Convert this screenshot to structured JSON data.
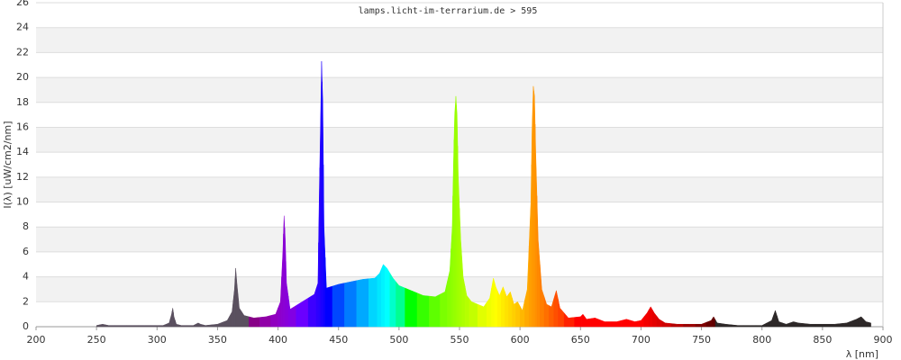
{
  "chart_data": {
    "type": "spectrum",
    "title": "lamps.licht-im-terrarium.de > 595",
    "x_label": "λ [nm]",
    "y_label": "I(λ)  [uW/cm2/nm]",
    "x": [
      250,
      255,
      260,
      270,
      280,
      290,
      300,
      305,
      310,
      312,
      313,
      314,
      316,
      320,
      330,
      334,
      336,
      340,
      350,
      358,
      362,
      364,
      365,
      366,
      368,
      372,
      380,
      390,
      398,
      402,
      404,
      405,
      406,
      407,
      410,
      420,
      430,
      433,
      434,
      435,
      436,
      437,
      438,
      440,
      450,
      460,
      470,
      480,
      484,
      487,
      490,
      495,
      500,
      510,
      520,
      530,
      538,
      542,
      544,
      545,
      546,
      547,
      548,
      549,
      551,
      553,
      556,
      560,
      570,
      575,
      578,
      580,
      583,
      586,
      589,
      592,
      595,
      598,
      602,
      606,
      609,
      610,
      611,
      612,
      613,
      615,
      618,
      622,
      626,
      630,
      633,
      640,
      650,
      652,
      655,
      662,
      670,
      680,
      688,
      695,
      700,
      705,
      708,
      711,
      715,
      720,
      730,
      740,
      750,
      758,
      760,
      763,
      770,
      780,
      790,
      800,
      808,
      811,
      814,
      820,
      826,
      830,
      840,
      850,
      860,
      870,
      878,
      882,
      886,
      890
    ],
    "values": [
      0.1,
      0.2,
      0.1,
      0.1,
      0.1,
      0.1,
      0.1,
      0.1,
      0.3,
      1.0,
      1.5,
      0.8,
      0.2,
      0.1,
      0.1,
      0.3,
      0.2,
      0.1,
      0.2,
      0.5,
      1.2,
      3.0,
      4.7,
      3.5,
      1.5,
      0.9,
      0.7,
      0.8,
      1.0,
      2.0,
      6.0,
      8.9,
      7.0,
      3.5,
      1.4,
      2.0,
      2.6,
      3.5,
      10,
      15.5,
      21.3,
      18,
      8,
      3.1,
      3.4,
      3.6,
      3.8,
      3.9,
      4.3,
      5.0,
      4.7,
      3.9,
      3.3,
      2.9,
      2.5,
      2.4,
      2.8,
      4.5,
      8,
      13,
      17,
      18.5,
      17,
      12,
      7,
      4,
      2.5,
      2.0,
      1.6,
      2.3,
      3.9,
      3.2,
      2.5,
      3.2,
      2.4,
      2.8,
      1.8,
      2.0,
      1.3,
      3.0,
      10,
      16,
      19.3,
      18.5,
      14,
      7,
      3,
      1.8,
      1.6,
      2.9,
      1.5,
      0.7,
      0.8,
      1.0,
      0.6,
      0.7,
      0.4,
      0.4,
      0.6,
      0.4,
      0.5,
      1.1,
      1.6,
      1.1,
      0.6,
      0.3,
      0.2,
      0.2,
      0.2,
      0.5,
      0.8,
      0.3,
      0.2,
      0.1,
      0.1,
      0.1,
      0.5,
      1.3,
      0.4,
      0.2,
      0.4,
      0.3,
      0.2,
      0.2,
      0.2,
      0.3,
      0.6,
      0.8,
      0.4,
      0.3
    ],
    "xlim": [
      200,
      900
    ],
    "ylim": [
      0,
      26
    ],
    "xticks": [
      200,
      250,
      300,
      350,
      400,
      450,
      500,
      550,
      600,
      650,
      700,
      750,
      800,
      850,
      900
    ],
    "yticks": [
      0,
      2,
      4,
      6,
      8,
      10,
      12,
      14,
      16,
      18,
      20,
      22,
      24,
      26
    ],
    "grid": true
  }
}
